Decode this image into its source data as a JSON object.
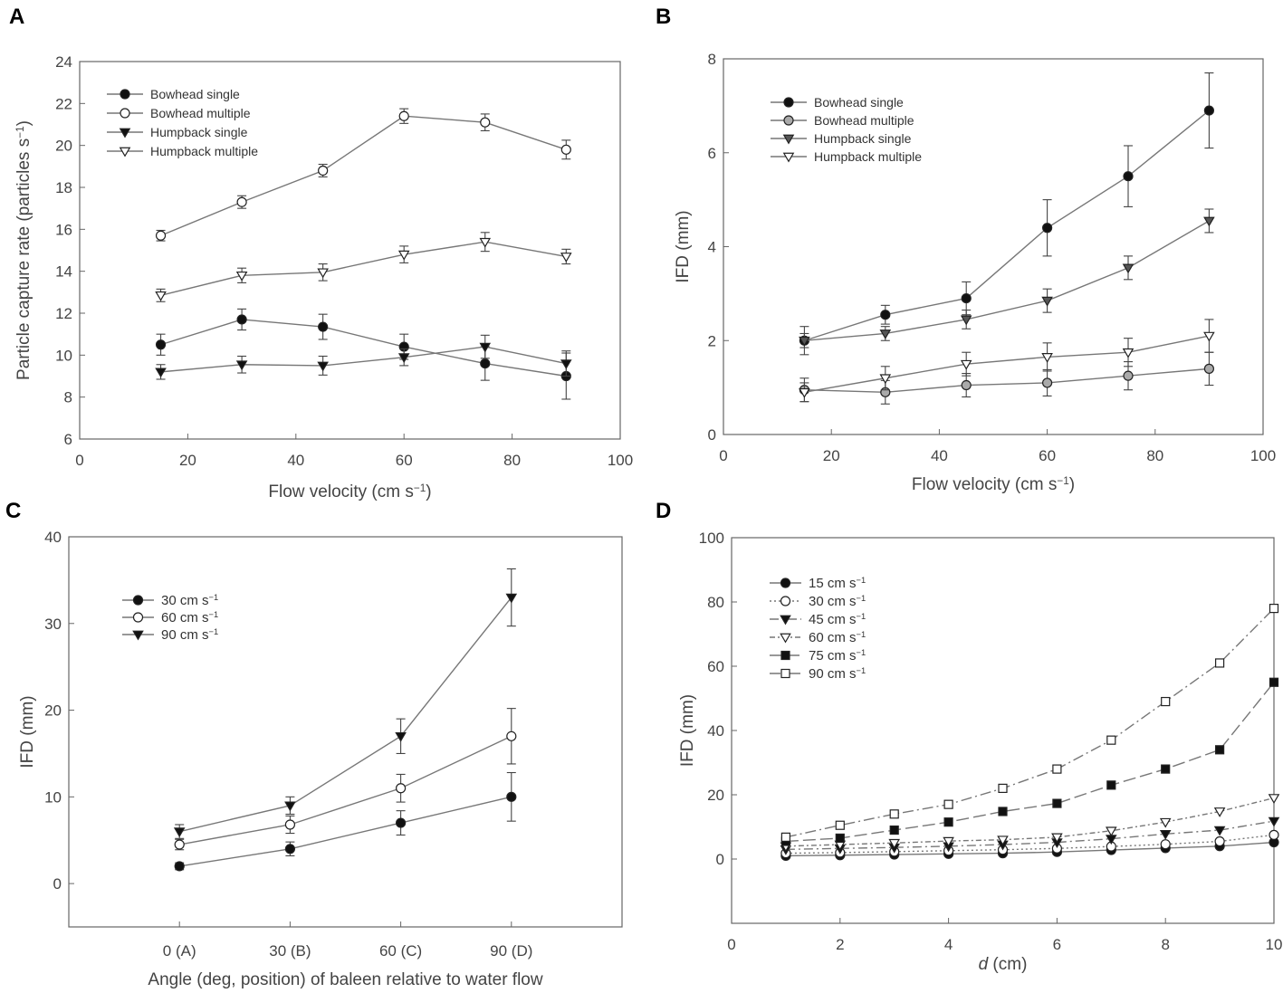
{
  "chart_data": [
    {
      "panel": "A",
      "type": "line",
      "title": "",
      "xlabel": "Flow velocity (cm s",
      "xlabel_sup": "−1",
      "xlabel_tail": ")",
      "ylabel": "Particle capture rate (particles s",
      "ylabel_sup": "−1",
      "ylabel_tail": ")",
      "xlim": [
        0,
        100
      ],
      "ylim": [
        6,
        24
      ],
      "xticks": [
        0,
        20,
        40,
        60,
        80,
        100
      ],
      "yticks": [
        6,
        8,
        10,
        12,
        14,
        16,
        18,
        20,
        22,
        24
      ],
      "legend_position": "top-left",
      "series": [
        {
          "name": "Bowhead single",
          "marker": "circle",
          "fill": "#111111",
          "x": [
            15,
            30,
            45,
            60,
            75,
            90
          ],
          "values": [
            10.5,
            11.7,
            11.35,
            10.4,
            9.6,
            9.0
          ],
          "err": [
            0.5,
            0.5,
            0.6,
            0.6,
            0.8,
            1.1
          ]
        },
        {
          "name": "Bowhead multiple",
          "marker": "circle",
          "fill": "#ffffff",
          "x": [
            15,
            30,
            45,
            60,
            75,
            90
          ],
          "values": [
            15.7,
            17.3,
            18.8,
            21.4,
            21.1,
            19.8
          ],
          "err": [
            0.25,
            0.3,
            0.3,
            0.35,
            0.4,
            0.45
          ]
        },
        {
          "name": "Humpback single",
          "marker": "triangle-down",
          "fill": "#111111",
          "x": [
            15,
            30,
            45,
            60,
            75,
            90
          ],
          "values": [
            9.2,
            9.55,
            9.5,
            9.9,
            10.4,
            9.6
          ],
          "err": [
            0.35,
            0.4,
            0.45,
            0.4,
            0.55,
            0.6
          ]
        },
        {
          "name": "Humpback multiple",
          "marker": "triangle-down",
          "fill": "#ffffff",
          "x": [
            15,
            30,
            45,
            60,
            75,
            90
          ],
          "values": [
            12.85,
            13.8,
            13.95,
            14.8,
            15.4,
            14.7
          ],
          "err": [
            0.3,
            0.35,
            0.4,
            0.4,
            0.45,
            0.35
          ]
        }
      ]
    },
    {
      "panel": "B",
      "type": "line",
      "title": "",
      "xlabel": "Flow velocity (cm s",
      "xlabel_sup": "−1",
      "xlabel_tail": ")",
      "ylabel": "IFD (mm)",
      "xlim": [
        0,
        100
      ],
      "ylim": [
        0,
        8
      ],
      "xticks": [
        0,
        20,
        40,
        60,
        80,
        100
      ],
      "yticks": [
        0,
        2,
        4,
        6,
        8
      ],
      "legend_position": "top-left",
      "series": [
        {
          "name": "Bowhead single",
          "marker": "circle",
          "fill": "#111111",
          "x": [
            15,
            30,
            45,
            60,
            75,
            90
          ],
          "values": [
            2.0,
            2.55,
            2.9,
            4.4,
            5.5,
            6.9
          ],
          "err": [
            0.3,
            0.2,
            0.35,
            0.6,
            0.65,
            0.8
          ]
        },
        {
          "name": "Bowhead multiple",
          "marker": "circle",
          "fill": "#aaaaaa",
          "x": [
            15,
            30,
            45,
            60,
            75,
            90
          ],
          "values": [
            0.95,
            0.9,
            1.05,
            1.1,
            1.25,
            1.4
          ],
          "err": [
            0.25,
            0.25,
            0.25,
            0.28,
            0.3,
            0.35
          ]
        },
        {
          "name": "Humpback single",
          "marker": "triangle-down",
          "fill": "#555555",
          "x": [
            15,
            30,
            45,
            60,
            75,
            90
          ],
          "values": [
            2.0,
            2.15,
            2.45,
            2.85,
            3.55,
            4.55
          ],
          "err": [
            0.15,
            0.15,
            0.2,
            0.25,
            0.25,
            0.25
          ]
        },
        {
          "name": "Humpback multiple",
          "marker": "triangle-down",
          "fill": "#ffffff",
          "x": [
            15,
            30,
            45,
            60,
            75,
            90
          ],
          "values": [
            0.9,
            1.2,
            1.5,
            1.65,
            1.75,
            2.1
          ],
          "err": [
            0.2,
            0.25,
            0.25,
            0.3,
            0.3,
            0.35
          ]
        }
      ]
    },
    {
      "panel": "C",
      "type": "line",
      "title": "",
      "xlabel": "Angle (deg, position) of baleen relative to water flow",
      "ylabel": "IFD (mm)",
      "categories": [
        "0 (A)",
        "30 (B)",
        "60 (C)",
        "90 (D)"
      ],
      "ylim": [
        -5,
        40
      ],
      "yticks": [
        0,
        10,
        20,
        30,
        40
      ],
      "legend_position": "top-left",
      "series": [
        {
          "name": "30 cm s",
          "sup": "−1",
          "marker": "circle",
          "fill": "#111111",
          "values": [
            2.0,
            4.0,
            7.0,
            10.0
          ],
          "err": [
            0.4,
            0.8,
            1.4,
            2.8
          ]
        },
        {
          "name": "60 cm s",
          "sup": "−1",
          "marker": "circle",
          "fill": "#ffffff",
          "values": [
            4.5,
            6.8,
            11.0,
            17.0
          ],
          "err": [
            0.6,
            1.0,
            1.6,
            3.2
          ]
        },
        {
          "name": "90 cm s",
          "sup": "−1",
          "marker": "triangle-down",
          "fill": "#111111",
          "values": [
            6.0,
            9.0,
            17.0,
            33.0
          ],
          "err": [
            0.8,
            1.0,
            2.0,
            3.3
          ]
        }
      ]
    },
    {
      "panel": "D",
      "type": "line",
      "title": "",
      "xlabel_italic": "d",
      "xlabel": " (cm)",
      "ylabel": "IFD (mm)",
      "xlim": [
        0,
        10
      ],
      "ylim": [
        -20,
        100
      ],
      "xticks": [
        0,
        2,
        4,
        6,
        8,
        10
      ],
      "yticks": [
        0,
        20,
        40,
        60,
        80,
        100
      ],
      "legend_position": "top-left",
      "series": [
        {
          "name": "15 cm s",
          "sup": "−1",
          "marker": "circle",
          "fill": "#111111",
          "dash": "",
          "x": [
            1,
            2,
            3,
            4,
            5,
            6,
            7,
            8,
            9,
            10
          ],
          "values": [
            1.0,
            1.2,
            1.4,
            1.6,
            1.8,
            2.2,
            2.8,
            3.4,
            4.0,
            5.2
          ]
        },
        {
          "name": "30 cm s",
          "sup": "−1",
          "marker": "circle",
          "fill": "#ffffff",
          "dash": "2,3",
          "x": [
            1,
            2,
            3,
            4,
            5,
            6,
            7,
            8,
            9,
            10
          ],
          "values": [
            1.8,
            2.0,
            2.3,
            2.6,
            2.9,
            3.3,
            3.9,
            4.6,
            5.5,
            7.5
          ]
        },
        {
          "name": "45 cm s",
          "sup": "−1",
          "marker": "triangle-down",
          "fill": "#111111",
          "dash": "10,4,2,4",
          "x": [
            1,
            2,
            3,
            4,
            5,
            6,
            7,
            8,
            9,
            10
          ],
          "values": [
            3.0,
            3.3,
            3.6,
            4.0,
            4.5,
            5.2,
            6.3,
            7.8,
            9.0,
            11.8
          ]
        },
        {
          "name": "60 cm s",
          "sup": "−1",
          "marker": "triangle-down",
          "fill": "#ffffff",
          "dash": "6,3,2,3",
          "x": [
            1,
            2,
            3,
            4,
            5,
            6,
            7,
            8,
            9,
            10
          ],
          "values": [
            4.0,
            4.5,
            5.0,
            5.6,
            6.0,
            6.8,
            8.8,
            11.5,
            14.8,
            19.0
          ]
        },
        {
          "name": "75 cm s",
          "sup": "−1",
          "marker": "square",
          "fill": "#111111",
          "dash": "14,5",
          "x": [
            1,
            2,
            3,
            4,
            5,
            6,
            7,
            8,
            9,
            10
          ],
          "values": [
            5.5,
            6.5,
            9.0,
            11.5,
            14.8,
            17.3,
            23.0,
            28.0,
            34.0,
            55.0
          ]
        },
        {
          "name": "90 cm s",
          "sup": "−1",
          "marker": "square",
          "fill": "#ffffff",
          "dash": "12,4,2,4",
          "x": [
            1,
            2,
            3,
            4,
            5,
            6,
            7,
            8,
            9,
            10
          ],
          "values": [
            6.8,
            10.5,
            14.0,
            17.0,
            22.0,
            28.0,
            37.0,
            49.0,
            61.0,
            78.0
          ]
        }
      ]
    }
  ]
}
